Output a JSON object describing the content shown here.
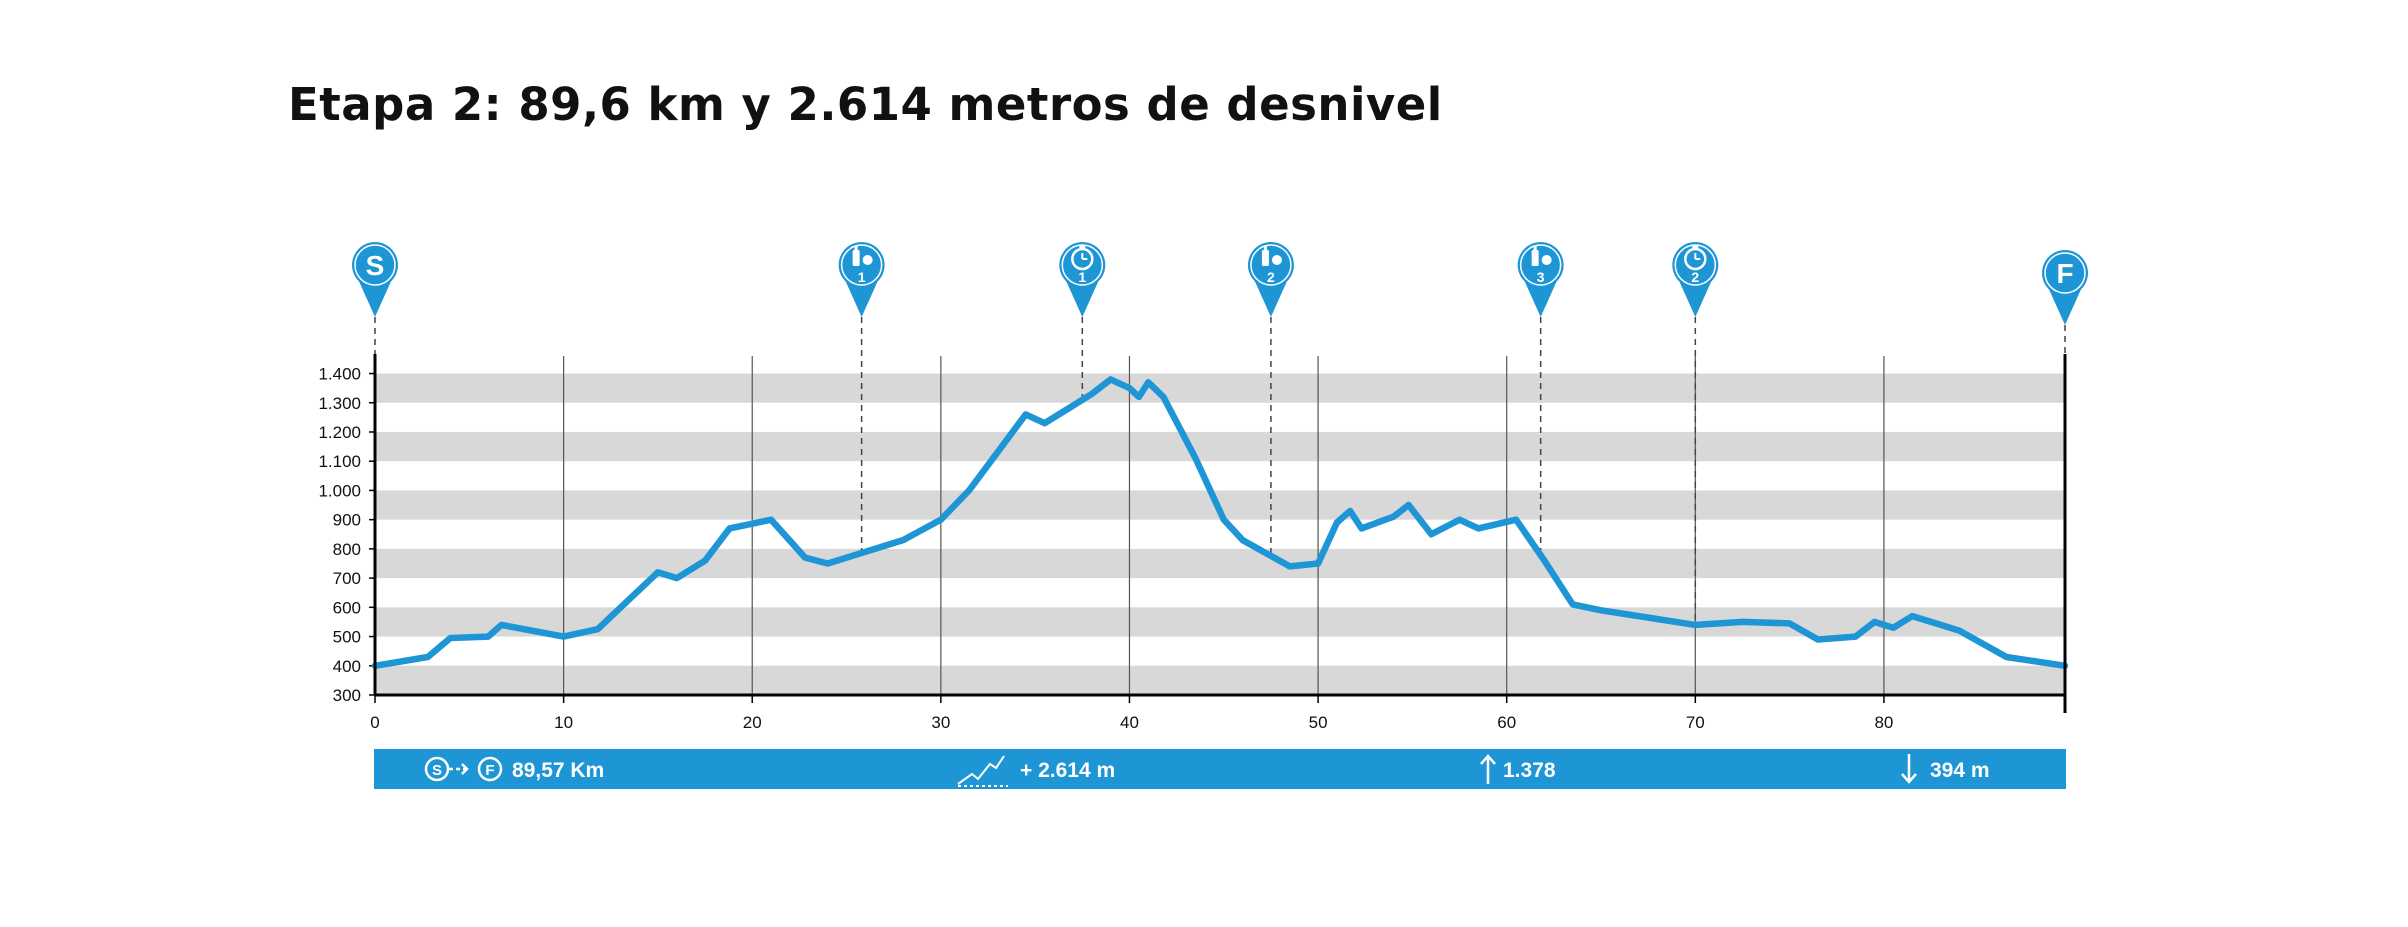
{
  "title": "Etapa 2: 89,6 km y 2.614 metros de desnivel",
  "colors": {
    "accent": "#1e96d6",
    "band": "#d8d8d8",
    "axis": "#000000",
    "text": "#111111"
  },
  "chart_data": {
    "type": "area",
    "xlim": [
      0,
      89.6
    ],
    "ylim": [
      300,
      1460
    ],
    "xticks": [
      0,
      10,
      20,
      30,
      40,
      50,
      60,
      70,
      80
    ],
    "xtick_labels": [
      "0",
      "10",
      "20",
      "30",
      "40",
      "50",
      "60",
      "70",
      "80"
    ],
    "yticks": [
      300,
      400,
      500,
      600,
      700,
      800,
      900,
      1000,
      1100,
      1200,
      1300,
      1400
    ],
    "ytick_labels": [
      "300",
      "400",
      "500",
      "600",
      "700",
      "800",
      "900",
      "1.000",
      "1.100",
      "1.200",
      "1.300",
      "1.400"
    ],
    "grid": "alternating horizontal bands",
    "series": [
      {
        "x": [
          0,
          2.8,
          4.0,
          6.0,
          6.7,
          10.0,
          11.8,
          15.0,
          16.0,
          17.5,
          18.8,
          21.0,
          22.8,
          24.0,
          26.0,
          28.0,
          30.0,
          31.5,
          33.0,
          34.5,
          35.5,
          37.0,
          38.0,
          39.0,
          40.0,
          40.5,
          41.0,
          41.8,
          43.5,
          45.0,
          46.0,
          48.5,
          50.0,
          51.0,
          51.7,
          52.3,
          54.0,
          54.8,
          56.0,
          57.5,
          58.5,
          60.5,
          62.0,
          63.5,
          65.0,
          70.0,
          72.5,
          75.0,
          76.5,
          78.5,
          79.5,
          80.5,
          81.5,
          82.5,
          84.0,
          86.5,
          89.6
        ],
        "values": [
          400,
          430,
          495,
          500,
          540,
          500,
          525,
          720,
          700,
          760,
          870,
          900,
          770,
          750,
          790,
          830,
          900,
          1000,
          1130,
          1260,
          1230,
          1290,
          1330,
          1380,
          1350,
          1320,
          1370,
          1320,
          1110,
          900,
          830,
          740,
          750,
          890,
          930,
          870,
          910,
          950,
          850,
          900,
          870,
          900,
          760,
          610,
          590,
          540,
          550,
          545,
          490,
          500,
          550,
          530,
          570,
          550,
          520,
          430,
          400
        ]
      }
    ],
    "markers": [
      {
        "x": 0,
        "label": "S",
        "kind": "start"
      },
      {
        "x": 25.8,
        "label": "1",
        "kind": "feed"
      },
      {
        "x": 37.5,
        "label": "1",
        "kind": "timer"
      },
      {
        "x": 47.5,
        "label": "2",
        "kind": "feed"
      },
      {
        "x": 61.8,
        "label": "3",
        "kind": "feed"
      },
      {
        "x": 70.0,
        "label": "2",
        "kind": "timer"
      },
      {
        "x": 89.6,
        "label": "F",
        "kind": "finish"
      }
    ]
  },
  "summary": {
    "start_badge": "S",
    "finish_badge": "F",
    "distance": "89,57 Km",
    "gain": "+ 2.614 m",
    "max": "1.378",
    "min": "394 m"
  }
}
